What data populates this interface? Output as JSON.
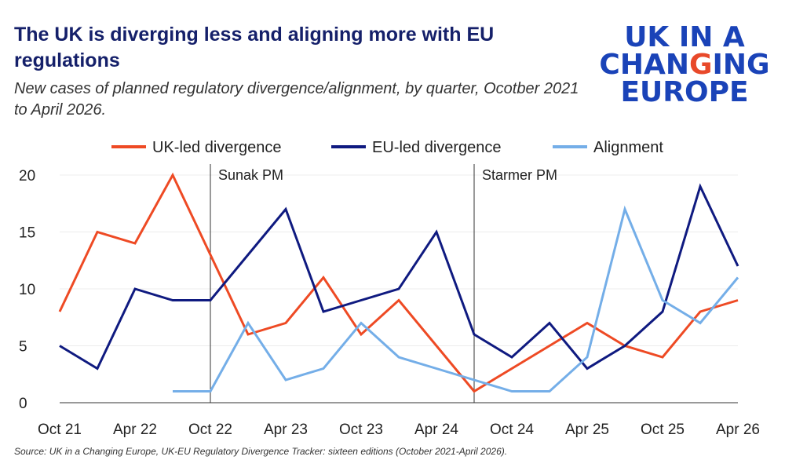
{
  "title": "The UK is diverging less and aligning more with EU regulations",
  "subtitle": "New cases of planned regulatory divergence/alignment, by quarter, Ocotber 2021 to April 2026.",
  "logo": {
    "line1": "UK IN A",
    "line2a": "CHAN",
    "line2b": "G",
    "line2c": "ING",
    "line3": "EUROPE"
  },
  "source": "Source: UK in a Changing Europe, UK-EU Regulatory Divergence Tracker: sixteen editions (October 2021-April 2026).",
  "colors": {
    "uk": "#ee4a24",
    "eu": "#0f1a80",
    "align": "#74aee8",
    "title": "#15206a",
    "logo": "#1a43b8",
    "logo_accent": "#e8492a"
  },
  "chart_data": {
    "type": "line",
    "x_ticks": [
      "Oct 21",
      "Apr 22",
      "Oct 22",
      "Apr 23",
      "Oct 23",
      "Apr 24",
      "Oct 24",
      "Apr 25",
      "Oct 25",
      "Apr 26"
    ],
    "y_ticks": [
      0,
      5,
      10,
      15,
      20
    ],
    "ylim": [
      0,
      20
    ],
    "grid": true,
    "legend": "top",
    "series": [
      {
        "name": "UK-led divergence",
        "color": "#ee4a24",
        "values": [
          8,
          15,
          14,
          20,
          13,
          6,
          7,
          11,
          6,
          9,
          5,
          1,
          3,
          5,
          7,
          5,
          4,
          8,
          9
        ]
      },
      {
        "name": "EU-led divergence",
        "color": "#0f1a80",
        "values": [
          5,
          3,
          10,
          9,
          9,
          13,
          17,
          8,
          9,
          10,
          15,
          6,
          4,
          7,
          3,
          5,
          8,
          19,
          12
        ]
      },
      {
        "name": "Alignment",
        "color": "#74aee8",
        "values": [
          null,
          null,
          null,
          1,
          1,
          7,
          2,
          3,
          7,
          4,
          3,
          2,
          1,
          1,
          4,
          17,
          9,
          7,
          11
        ]
      }
    ],
    "annotations": [
      {
        "label": "Sunak PM",
        "at_index": 4
      },
      {
        "label": "Starmer PM",
        "at_index": 11
      }
    ]
  }
}
